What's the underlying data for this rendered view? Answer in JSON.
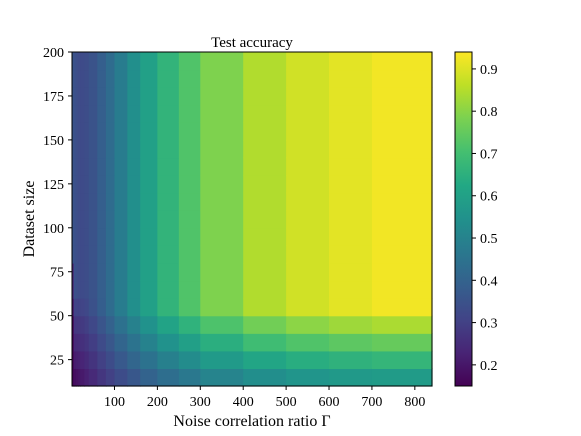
{
  "chart_data": {
    "type": "heatmap",
    "title": "Test accuracy",
    "xlabel": "Noise correlation ratio Γ",
    "ylabel": "Dataset size",
    "x_ticks": [
      100,
      200,
      300,
      400,
      500,
      600,
      700,
      800
    ],
    "y_ticks": [
      25,
      50,
      75,
      100,
      125,
      150,
      175,
      200
    ],
    "xlim": [
      1,
      840
    ],
    "ylim": [
      10,
      200
    ],
    "colorbar": {
      "range": [
        0.15,
        0.94
      ],
      "ticks": [
        0.2,
        0.3,
        0.4,
        0.5,
        0.6,
        0.7,
        0.8,
        0.9
      ],
      "tick_labels": [
        "0.2",
        "0.3",
        "0.4",
        "0.5",
        "0.6",
        "0.7",
        "0.8",
        "0.9"
      ],
      "colormap": "viridis",
      "placement": "right"
    },
    "x_bins": [
      1,
      5,
      10,
      15,
      20,
      30,
      40,
      60,
      80,
      100,
      130,
      160,
      200,
      250,
      300,
      400,
      500,
      600,
      700,
      840
    ],
    "y_bins": [
      10,
      20,
      30,
      40,
      50,
      60,
      70,
      80,
      90,
      100,
      110,
      120,
      130,
      140,
      150,
      160,
      170,
      180,
      190,
      200
    ],
    "grid": false
  }
}
